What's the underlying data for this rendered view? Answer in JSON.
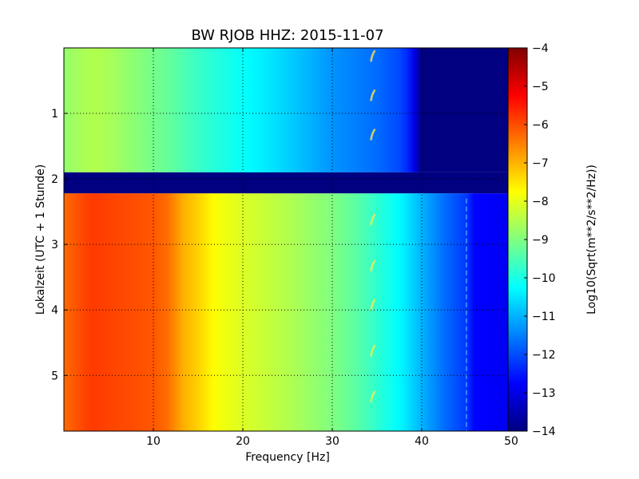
{
  "chart_data": {
    "type": "heatmap",
    "title": "BW RJOB HHZ: 2015-11-07",
    "xlabel": "Frequency [Hz]",
    "ylabel": "Lokalzeit (UTC + 1 Stunde)",
    "xlim": [
      0,
      50
    ],
    "ylim": [
      5.85,
      0
    ],
    "x_ticks": [
      10,
      20,
      30,
      40,
      50
    ],
    "y_ticks": [
      1,
      2,
      3,
      4,
      5
    ],
    "grid": true,
    "colorbar": {
      "label": "Log10(Sqrt(m**2/s**2/Hz))",
      "range": [
        -14,
        -4
      ],
      "ticks": [
        -4,
        -5,
        -6,
        -7,
        -8,
        -9,
        -10,
        -11,
        -12,
        -13,
        -14
      ]
    },
    "data_gap": {
      "from_hour": 1.9,
      "to_hour": 2.22,
      "value": -14
    },
    "segments": [
      {
        "from_hour": 0,
        "to_hour": 1.9,
        "frequency_hz": [
          0,
          3,
          5,
          9,
          12,
          15,
          20,
          25,
          30,
          35,
          38,
          39,
          40,
          45,
          50
        ],
        "log10_asd": [
          -8.8,
          -8.5,
          -8.6,
          -9.0,
          -9.3,
          -9.7,
          -10.2,
          -10.7,
          -11.3,
          -11.7,
          -12.1,
          -12.8,
          -14,
          -14,
          -14
        ]
      },
      {
        "from_hour": 2.22,
        "to_hour": 5.85,
        "frequency_hz": [
          0,
          3,
          5,
          10,
          12,
          13,
          15,
          17,
          20,
          25,
          30,
          33,
          35,
          38,
          40,
          43,
          45,
          45.5,
          50
        ],
        "log10_asd": [
          -6.3,
          -5.8,
          -5.9,
          -6.1,
          -6.4,
          -6.9,
          -7.3,
          -7.8,
          -8.1,
          -8.5,
          -9.0,
          -9.4,
          -9.8,
          -10.4,
          -11.0,
          -11.8,
          -12.2,
          -12.7,
          -12.9
        ]
      }
    ],
    "features": [
      {
        "kind": "tonal_streak",
        "frequency_hz": 34.5,
        "hours": [
          0.1,
          0.7,
          1.3,
          2.6,
          3.3,
          3.9,
          4.6,
          5.3
        ]
      },
      {
        "kind": "weak_line",
        "frequency_hz": 45,
        "hours": [
          2.3,
          5.85
        ]
      }
    ]
  }
}
